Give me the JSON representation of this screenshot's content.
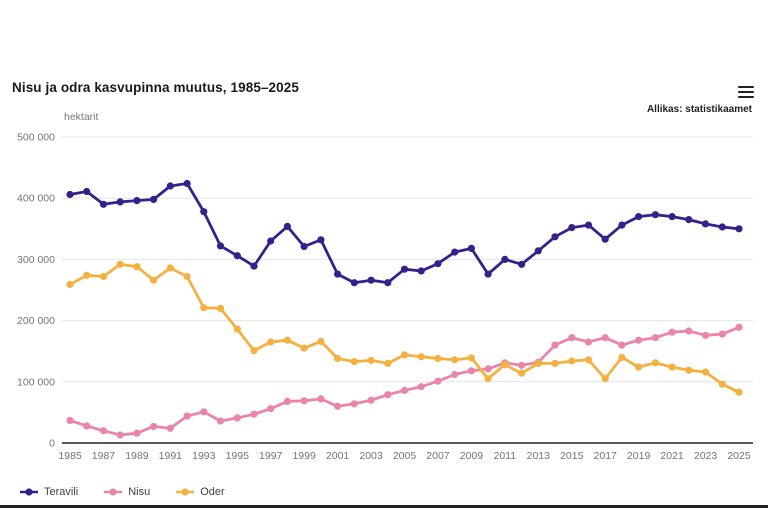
{
  "header": {
    "title": "Nisu ja odra kasvupinna muutus, 1985–2025",
    "source": "Allikas: statistikaamet",
    "menu_icon": "hamburger-menu-icon"
  },
  "axis": {
    "unit_label": "hektarit",
    "y_ticks": [
      {
        "value": 500000,
        "label": "500 000"
      },
      {
        "value": 400000,
        "label": "400 000"
      },
      {
        "value": 300000,
        "label": "300 000"
      },
      {
        "value": 200000,
        "label": "200 000"
      },
      {
        "value": 100000,
        "label": "100 000"
      },
      {
        "value": 0,
        "label": "0"
      }
    ],
    "x_tick_years": [
      1985,
      1987,
      1989,
      1991,
      1993,
      1995,
      1997,
      1999,
      2001,
      2003,
      2005,
      2007,
      2009,
      2011,
      2013,
      2015,
      2017,
      2019,
      2021,
      2023,
      2025
    ]
  },
  "colors": {
    "teravili": "#35208c",
    "nisu": "#e986a5",
    "oder": "#f4b142",
    "gridline": "#e6e6e6",
    "axis_line": "#212121",
    "tick_text": "#757575"
  },
  "chart_data": {
    "type": "line",
    "title": "Nisu ja odra kasvupinna muutus, 1985–2025",
    "ylabel": "hektarit",
    "ylim": [
      0,
      500000
    ],
    "grid": true,
    "legend_position": "bottom-left",
    "x": [
      1985,
      1986,
      1987,
      1988,
      1989,
      1990,
      1991,
      1992,
      1993,
      1994,
      1995,
      1996,
      1997,
      1998,
      1999,
      2000,
      2001,
      2002,
      2003,
      2004,
      2005,
      2006,
      2007,
      2008,
      2009,
      2010,
      2011,
      2012,
      2013,
      2014,
      2015,
      2016,
      2017,
      2018,
      2019,
      2020,
      2021,
      2022,
      2023,
      2024,
      2025
    ],
    "series": [
      {
        "name": "Teravili",
        "color": "#35208c",
        "values": [
          406000,
          411000,
          390000,
          394000,
          396000,
          398000,
          420000,
          424000,
          378000,
          322000,
          306000,
          289000,
          330000,
          354000,
          321000,
          332000,
          276000,
          262000,
          266000,
          262000,
          284000,
          281000,
          293000,
          312000,
          318000,
          276000,
          300000,
          292000,
          314000,
          337000,
          352000,
          356000,
          333000,
          356000,
          370000,
          373000,
          370000,
          365000,
          358000,
          353000,
          350000
        ]
      },
      {
        "name": "Nisu",
        "color": "#e986a5",
        "values": [
          37000,
          28000,
          20000,
          13000,
          16000,
          27000,
          24000,
          44000,
          51000,
          36000,
          41000,
          47000,
          56000,
          68000,
          69000,
          72000,
          60000,
          64000,
          70000,
          79000,
          86000,
          92000,
          101000,
          112000,
          118000,
          121000,
          131000,
          127000,
          132000,
          160000,
          172000,
          165000,
          172000,
          160000,
          168000,
          172000,
          181000,
          183000,
          176000,
          178000,
          189000
        ]
      },
      {
        "name": "Oder",
        "color": "#f4b142",
        "values": [
          259000,
          274000,
          272000,
          292000,
          288000,
          266000,
          286000,
          272000,
          221000,
          220000,
          186000,
          151000,
          165000,
          168000,
          155000,
          166000,
          138000,
          133000,
          135000,
          130000,
          144000,
          141000,
          138000,
          136000,
          139000,
          105000,
          128000,
          114000,
          130000,
          130000,
          134000,
          136000,
          105000,
          140000,
          124000,
          131000,
          124000,
          119000,
          116000,
          96000,
          83000
        ]
      }
    ]
  }
}
